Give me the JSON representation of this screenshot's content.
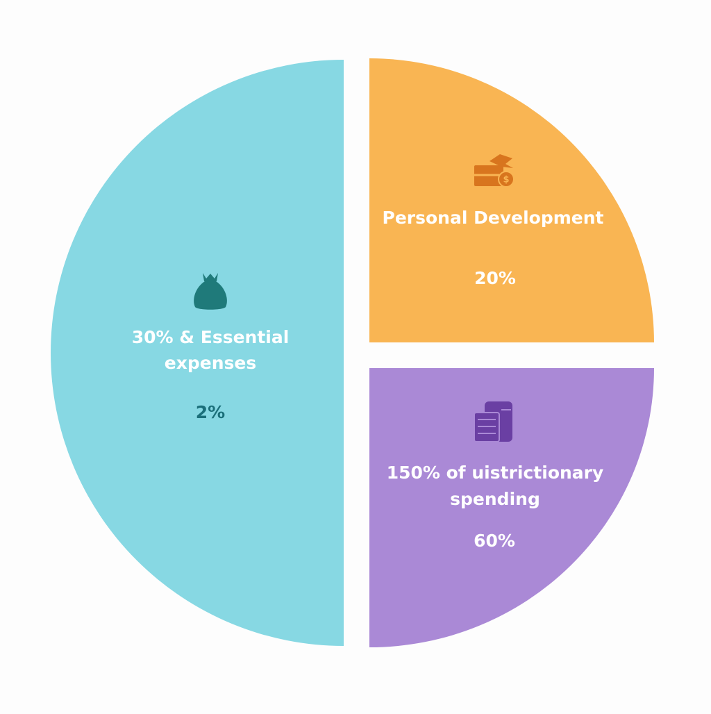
{
  "segments": [
    {
      "label_lines": [
        "30% & Essential",
        "expenses"
      ],
      "value": "2%"
    },
    {
      "label_lines": [
        "Personal Development"
      ],
      "value": "20%"
    },
    {
      "label_lines": [
        "150% of uistrictionary",
        "spending"
      ],
      "value": "60%"
    }
  ]
}
